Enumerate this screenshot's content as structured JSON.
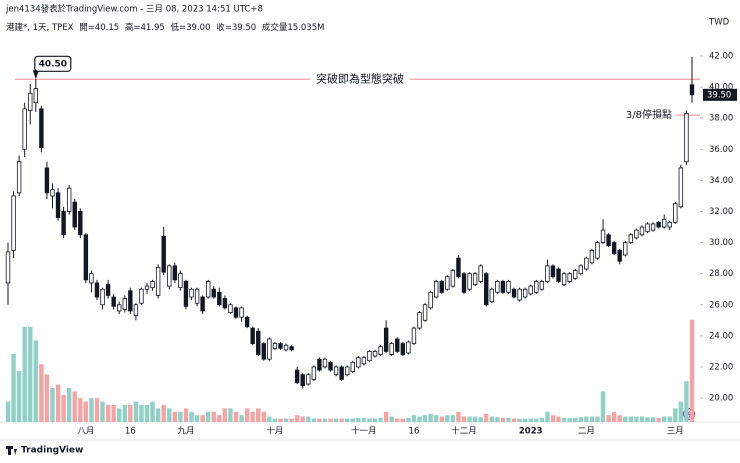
{
  "chart_data": {
    "type": "candlestick",
    "header": "jen4134發表於TradingView.com - 三月 08, 2023 14:51 UTC+8",
    "info": {
      "symbol": "港建*, 1天, TPEX",
      "open": "開=40.15",
      "high": "高=41.95",
      "low": "低=39.00",
      "close": "收=39.50",
      "volume": "成交量15.035M"
    },
    "currency": "TWD",
    "footer": "TradingView",
    "ylim": [
      18.46,
      45.6
    ],
    "yticks": [
      {
        "value": 20,
        "label": "20.00"
      },
      {
        "value": 22,
        "label": "22.00"
      },
      {
        "value": 24,
        "label": "24.00"
      },
      {
        "value": 26,
        "label": "26.00"
      },
      {
        "value": 28,
        "label": "28.00"
      },
      {
        "value": 30,
        "label": "30.00"
      },
      {
        "value": 32,
        "label": "32.00"
      },
      {
        "value": 34,
        "label": "34.00"
      },
      {
        "value": 36,
        "label": "36.00"
      },
      {
        "value": 38,
        "label": "38.00"
      },
      {
        "value": 40,
        "label": "40.00"
      },
      {
        "value": 42,
        "label": "42.00"
      }
    ],
    "up_color": "#ffffff",
    "down_color": "#131722",
    "edge_color": "#131722",
    "volume_up_color": "#8fd1c7",
    "volume_down_color": "#f5a3a3",
    "last_price": {
      "value": 39.5,
      "label": "39.50"
    },
    "annotations": [
      {
        "text": "突破即為型態突破",
        "value": 40.5,
        "color": "#f08c8c"
      },
      {
        "text": "3/8停損點",
        "value": 38.2,
        "color": "#f08c8c"
      }
    ],
    "callout": {
      "value": 40.5,
      "label": "40.50"
    },
    "categories": [
      null,
      null,
      null,
      null,
      null,
      null,
      null,
      null,
      null,
      null,
      null,
      null,
      null,
      null,
      "八月",
      null,
      null,
      null,
      null,
      null,
      null,
      null,
      "16",
      null,
      null,
      null,
      null,
      null,
      null,
      null,
      null,
      null,
      "九月",
      null,
      null,
      null,
      null,
      null,
      null,
      null,
      null,
      null,
      null,
      null,
      null,
      null,
      null,
      null,
      "十月",
      null,
      null,
      null,
      null,
      null,
      null,
      null,
      null,
      null,
      null,
      null,
      null,
      null,
      null,
      null,
      "十一月",
      null,
      null,
      null,
      null,
      null,
      null,
      null,
      null,
      "16",
      null,
      null,
      null,
      null,
      null,
      null,
      null,
      null,
      "十二月",
      null,
      null,
      null,
      null,
      null,
      null,
      null,
      null,
      null,
      null,
      null,
      "2023",
      null,
      null,
      null,
      null,
      null,
      null,
      null,
      null,
      null,
      "二月",
      null,
      null,
      null,
      null,
      null,
      null,
      null,
      null,
      null,
      null,
      null,
      null,
      null,
      null,
      null,
      "三月",
      null,
      null,
      null
    ],
    "candles": [
      [
        27.4,
        30.0,
        26.0,
        29.4
      ],
      [
        29.5,
        33.3,
        29.0,
        33.0
      ],
      [
        33.2,
        35.6,
        33.0,
        35.2
      ],
      [
        36.0,
        39.0,
        35.5,
        38.6
      ],
      [
        38.5,
        40.2,
        37.6,
        39.6
      ],
      [
        39.0,
        40.5,
        38.4,
        39.9
      ],
      [
        38.6,
        38.8,
        35.8,
        36.1
      ],
      [
        34.8,
        35.2,
        32.8,
        33.2
      ],
      [
        33.0,
        33.8,
        32.2,
        33.4
      ],
      [
        33.2,
        33.5,
        31.4,
        31.6
      ],
      [
        32.0,
        32.3,
        30.3,
        30.5
      ],
      [
        32.0,
        33.7,
        31.8,
        33.5
      ],
      [
        32.6,
        32.8,
        30.8,
        31.0
      ],
      [
        32.0,
        32.2,
        30.3,
        30.5
      ],
      [
        30.5,
        30.6,
        27.4,
        27.6
      ],
      [
        27.4,
        28.2,
        26.8,
        28.0
      ],
      [
        27.4,
        27.6,
        26.3,
        26.5
      ],
      [
        26.0,
        27.1,
        25.7,
        27.0
      ],
      [
        27.3,
        27.6,
        26.4,
        26.6
      ],
      [
        26.5,
        26.7,
        25.7,
        25.9
      ],
      [
        25.6,
        26.2,
        25.4,
        26.0
      ],
      [
        25.7,
        26.6,
        25.5,
        26.4
      ],
      [
        26.9,
        27.1,
        25.4,
        25.6
      ],
      [
        25.3,
        26.1,
        25.0,
        26.0
      ],
      [
        26.1,
        27.1,
        26.0,
        27.0
      ],
      [
        27.0,
        27.4,
        26.7,
        27.2
      ],
      [
        27.1,
        27.6,
        26.9,
        27.5
      ],
      [
        26.6,
        28.6,
        26.4,
        28.4
      ],
      [
        30.4,
        31.0,
        27.9,
        28.1
      ],
      [
        27.2,
        28.6,
        27.0,
        28.5
      ],
      [
        28.5,
        28.7,
        27.4,
        27.6
      ],
      [
        27.1,
        28.2,
        26.9,
        28.0
      ],
      [
        27.5,
        27.6,
        25.7,
        25.9
      ],
      [
        26.5,
        27.1,
        26.3,
        27.0
      ],
      [
        26.1,
        27.1,
        25.9,
        27.0
      ],
      [
        26.5,
        26.6,
        25.4,
        25.6
      ],
      [
        26.5,
        27.6,
        26.4,
        27.5
      ],
      [
        27.0,
        27.2,
        26.4,
        26.5
      ],
      [
        26.8,
        27.1,
        25.9,
        26.0
      ],
      [
        26.4,
        26.6,
        25.7,
        25.8
      ],
      [
        25.5,
        26.1,
        25.4,
        26.0
      ],
      [
        25.8,
        25.9,
        25.1,
        25.2
      ],
      [
        25.2,
        25.9,
        24.9,
        25.8
      ],
      [
        25.2,
        25.3,
        24.5,
        24.6
      ],
      [
        24.5,
        24.6,
        23.4,
        23.5
      ],
      [
        24.3,
        24.5,
        22.7,
        22.8
      ],
      [
        23.5,
        23.6,
        22.4,
        22.5
      ],
      [
        22.5,
        23.9,
        22.4,
        23.8
      ],
      [
        23.2,
        23.6,
        23.1,
        23.5
      ],
      [
        23.5,
        23.6,
        23.1,
        23.2
      ],
      [
        23.1,
        23.5,
        23.0,
        23.4
      ],
      [
        23.3,
        23.4,
        23.0,
        23.1
      ],
      [
        21.8,
        22.0,
        20.9,
        21.0
      ],
      [
        21.5,
        21.6,
        20.6,
        20.8
      ],
      [
        20.9,
        21.6,
        20.8,
        21.5
      ],
      [
        21.2,
        22.1,
        21.1,
        22.0
      ],
      [
        22.5,
        22.6,
        21.7,
        21.8
      ],
      [
        22.0,
        22.6,
        21.9,
        22.5
      ],
      [
        22.3,
        22.4,
        21.7,
        21.8
      ],
      [
        21.5,
        22.1,
        21.4,
        22.0
      ],
      [
        22.0,
        22.1,
        21.1,
        21.2
      ],
      [
        21.5,
        22.1,
        21.4,
        22.0
      ],
      [
        21.7,
        22.4,
        21.6,
        22.3
      ],
      [
        22.0,
        22.7,
        21.9,
        22.6
      ],
      [
        22.2,
        22.7,
        22.1,
        22.6
      ],
      [
        22.4,
        23.1,
        22.3,
        23.0
      ],
      [
        22.7,
        23.1,
        22.6,
        23.0
      ],
      [
        22.8,
        23.4,
        22.7,
        23.3
      ],
      [
        24.5,
        25.0,
        22.9,
        23.0
      ],
      [
        22.8,
        23.6,
        22.7,
        23.5
      ],
      [
        23.8,
        23.9,
        22.9,
        23.0
      ],
      [
        23.5,
        23.6,
        22.7,
        22.8
      ],
      [
        22.9,
        23.7,
        22.8,
        23.6
      ],
      [
        23.5,
        24.6,
        23.4,
        24.5
      ],
      [
        24.5,
        25.6,
        24.4,
        25.5
      ],
      [
        25.0,
        26.1,
        24.9,
        26.0
      ],
      [
        25.8,
        26.9,
        25.7,
        26.8
      ],
      [
        26.5,
        27.6,
        26.4,
        27.5
      ],
      [
        27.5,
        27.6,
        26.7,
        26.8
      ],
      [
        27.0,
        27.9,
        26.9,
        27.8
      ],
      [
        27.2,
        28.3,
        27.1,
        28.2
      ],
      [
        29.0,
        29.2,
        27.7,
        27.8
      ],
      [
        28.0,
        28.1,
        26.7,
        26.8
      ],
      [
        27.0,
        28.1,
        26.9,
        28.0
      ],
      [
        27.3,
        28.1,
        27.2,
        28.0
      ],
      [
        27.5,
        28.6,
        27.4,
        28.5
      ],
      [
        28.0,
        28.1,
        25.9,
        26.0
      ],
      [
        26.2,
        27.1,
        26.1,
        27.0
      ],
      [
        26.8,
        27.6,
        26.7,
        27.5
      ],
      [
        27.5,
        27.6,
        26.7,
        26.8
      ],
      [
        26.8,
        27.6,
        26.7,
        27.5
      ],
      [
        27.0,
        27.1,
        26.4,
        26.5
      ],
      [
        26.3,
        27.1,
        26.2,
        27.0
      ],
      [
        26.5,
        27.1,
        26.4,
        27.0
      ],
      [
        26.7,
        27.3,
        26.6,
        27.2
      ],
      [
        26.8,
        27.6,
        26.7,
        27.5
      ],
      [
        27.0,
        27.6,
        26.9,
        27.5
      ],
      [
        27.5,
        28.9,
        27.4,
        28.5
      ],
      [
        28.5,
        28.6,
        27.7,
        27.8
      ],
      [
        28.3,
        28.4,
        27.4,
        27.5
      ],
      [
        27.3,
        28.1,
        27.2,
        28.0
      ],
      [
        27.5,
        28.1,
        27.4,
        28.0
      ],
      [
        27.7,
        28.3,
        27.6,
        28.2
      ],
      [
        28.0,
        28.6,
        27.9,
        28.5
      ],
      [
        28.3,
        29.1,
        28.2,
        29.0
      ],
      [
        28.7,
        29.6,
        28.6,
        29.5
      ],
      [
        29.0,
        30.1,
        28.9,
        30.0
      ],
      [
        30.0,
        31.5,
        29.9,
        30.8
      ],
      [
        30.5,
        30.6,
        29.7,
        29.8
      ],
      [
        30.0,
        30.1,
        29.2,
        29.3
      ],
      [
        29.5,
        29.6,
        28.6,
        28.8
      ],
      [
        29.2,
        30.1,
        29.1,
        30.0
      ],
      [
        30.0,
        30.6,
        29.9,
        30.5
      ],
      [
        30.3,
        30.9,
        30.2,
        30.8
      ],
      [
        30.5,
        31.1,
        30.4,
        31.0
      ],
      [
        30.7,
        31.3,
        30.6,
        31.2
      ],
      [
        30.8,
        31.3,
        30.7,
        31.2
      ],
      [
        31.3,
        31.4,
        30.9,
        31.0
      ],
      [
        31.0,
        31.8,
        30.9,
        31.5
      ],
      [
        31.0,
        31.4,
        30.8,
        31.3
      ],
      [
        31.3,
        32.6,
        31.2,
        32.5
      ],
      [
        32.3,
        35.0,
        32.2,
        34.8
      ],
      [
        35.2,
        38.5,
        35.0,
        38.3
      ],
      [
        40.15,
        41.95,
        39.0,
        39.5
      ]
    ],
    "volume": [
      3.0,
      10.0,
      7.5,
      14.0,
      14.0,
      12.0,
      8.5,
      7.0,
      5.0,
      5.5,
      4.0,
      5.0,
      4.5,
      3.5,
      3.0,
      3.5,
      3.5,
      3.0,
      2.5,
      2.5,
      2.0,
      2.5,
      2.5,
      3.0,
      2.5,
      2.5,
      3.0,
      2.0,
      2.5,
      2.0,
      1.5,
      1.5,
      2.0,
      1.5,
      1.0,
      1.0,
      1.5,
      1.5,
      1.0,
      2.0,
      2.0,
      1.5,
      1.0,
      2.0,
      1.5,
      2.0,
      1.5,
      0.8,
      0.5,
      0.5,
      0.5,
      0.5,
      1.0,
      0.8,
      0.8,
      0.5,
      0.5,
      0.5,
      0.5,
      0.5,
      0.5,
      0.5,
      0.5,
      0.6,
      0.6,
      0.5,
      0.5,
      0.6,
      1.5,
      0.8,
      0.5,
      0.5,
      0.6,
      1.0,
      0.8,
      1.0,
      1.2,
      1.0,
      0.8,
      1.0,
      1.0,
      1.5,
      0.8,
      0.8,
      0.8,
      0.7,
      1.2,
      0.8,
      0.7,
      0.6,
      0.6,
      0.5,
      0.5,
      0.5,
      0.5,
      0.5,
      0.6,
      1.5,
      1.0,
      0.8,
      0.6,
      0.6,
      0.6,
      0.7,
      0.8,
      0.8,
      0.8,
      4.5,
      1.0,
      1.5,
      1.0,
      0.8,
      0.8,
      0.8,
      0.8,
      0.7,
      0.7,
      0.6,
      0.8,
      0.8,
      2.0,
      3.0,
      6.0,
      15.035
    ]
  }
}
